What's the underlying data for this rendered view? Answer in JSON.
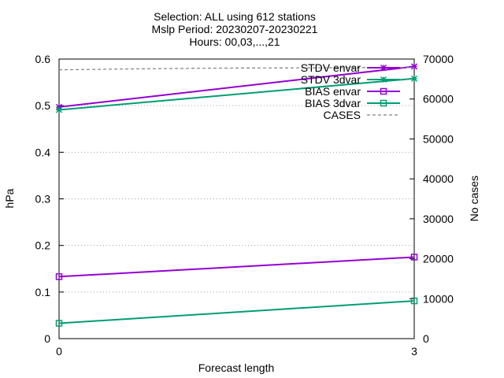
{
  "chart_data": {
    "type": "line",
    "title_lines": [
      "Selection: ALL using   612 stations",
      "Mslp   Period: 20230207-20230221",
      "Hours: 00,03,...,21"
    ],
    "xlabel": "Forecast length",
    "ylabel": "hPa",
    "y2label": "No cases",
    "x_ticks": [
      0,
      3
    ],
    "xlim": [
      0,
      3
    ],
    "ylim": [
      0,
      0.6
    ],
    "y_ticks": [
      "0",
      "0.1",
      "0.2",
      "0.3",
      "0.4",
      "0.5",
      "0.6"
    ],
    "y2lim": [
      0,
      70000
    ],
    "y2_ticks": [
      "0",
      "10000",
      "20000",
      "30000",
      "40000",
      "50000",
      "60000",
      "70000"
    ],
    "grid": "horizontal dotted",
    "legend_position": "top-right",
    "series": [
      {
        "name": "STDV envar",
        "axis": "y",
        "color": "#9400d3",
        "marker": "star",
        "dash": "solid",
        "x": [
          0,
          3
        ],
        "values": [
          0.497,
          0.584
        ]
      },
      {
        "name": "STDV 3dvar",
        "axis": "y",
        "color": "#009e73",
        "marker": "star",
        "dash": "solid",
        "x": [
          0,
          3
        ],
        "values": [
          0.491,
          0.558
        ]
      },
      {
        "name": "BIAS envar",
        "axis": "y",
        "color": "#9400d3",
        "marker": "square",
        "dash": "solid",
        "x": [
          0,
          3
        ],
        "values": [
          0.133,
          0.175
        ]
      },
      {
        "name": "BIAS 3dvar",
        "axis": "y",
        "color": "#009e73",
        "marker": "square",
        "dash": "solid",
        "x": [
          0,
          3
        ],
        "values": [
          0.033,
          0.081
        ]
      },
      {
        "name": "CASES",
        "axis": "y2",
        "color": "#808080",
        "marker": "none",
        "dash": "dashed",
        "x": [
          0,
          0.5,
          1,
          1.5,
          2,
          2.5,
          3
        ],
        "values": [
          67300,
          67500,
          67650,
          67750,
          67800,
          67850,
          67900
        ]
      }
    ]
  }
}
